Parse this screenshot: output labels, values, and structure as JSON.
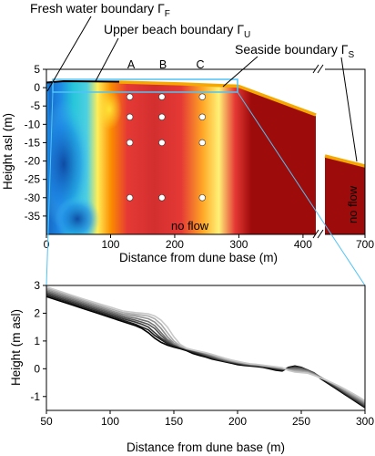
{
  "chart_data": [
    {
      "type": "heatmap",
      "xlabel": "Distance from dune base (m)",
      "ylabel": "Height asl (m)",
      "x_ticks": [
        "0",
        "100",
        "200",
        "300",
        "400",
        "700"
      ],
      "y_ticks": [
        "5",
        "0",
        "-5",
        "-10",
        "-15",
        "-20",
        "-25",
        "-30",
        "-35"
      ],
      "xlim": [
        0,
        700
      ],
      "ylim": [
        -40,
        5
      ],
      "axis_break": [
        420,
        600
      ],
      "annotations": {
        "fresh_water_boundary": "Fresh water boundary Γ",
        "fresh_water_sub": "F",
        "upper_beach_boundary": "Upper beach boundary Γ",
        "upper_beach_sub": "U",
        "seaside_boundary": "Seaside boundary Γ",
        "seaside_sub": "S",
        "no_flow_bottom": "no flow",
        "no_flow_right": "no flow",
        "profile_A": "A",
        "profile_B": "B",
        "profile_C": "C"
      },
      "profile_columns": [
        {
          "label": "A",
          "x": 130
        },
        {
          "label": "B",
          "x": 180
        },
        {
          "label": "C",
          "x": 243
        }
      ],
      "observation_depths": [
        -2.5,
        -8,
        -15,
        -30
      ],
      "boundary_colors": {
        "fresh_water": "#1f77b4",
        "upper_beach": "#000000",
        "seaside": "#f5a800"
      },
      "zoom_box": {
        "x": [
          50,
          300
        ],
        "y": [
          -1.5,
          3
        ]
      }
    },
    {
      "type": "line",
      "xlabel": "Distance from dune base (m)",
      "ylabel": "Height (m asl)",
      "x_ticks": [
        "50",
        "100",
        "150",
        "200",
        "250",
        "300"
      ],
      "y_ticks": [
        "3",
        "2",
        "1",
        "0",
        "-1"
      ],
      "xlim": [
        50,
        300
      ],
      "ylim": [
        -1.5,
        3
      ],
      "profile_x": [
        50,
        60,
        70,
        80,
        90,
        100,
        110,
        120,
        125,
        130,
        135,
        140,
        145,
        150,
        155,
        160,
        165,
        170,
        175,
        180,
        185,
        190,
        195,
        200,
        205,
        210,
        215,
        220,
        225,
        230,
        235,
        240,
        245,
        250,
        255,
        260,
        265,
        270,
        275,
        280,
        285,
        290,
        295,
        300
      ],
      "series": [
        {
          "values": [
            2.6,
            2.45,
            2.3,
            2.15,
            2.0,
            1.85,
            1.7,
            1.55,
            1.45,
            1.3,
            1.1,
            0.95,
            0.85,
            0.78,
            0.72,
            0.65,
            0.55,
            0.48,
            0.42,
            0.35,
            0.3,
            0.25,
            0.2,
            0.15,
            0.12,
            0.1,
            0.08,
            0.05,
            0.0,
            -0.05,
            -0.08,
            0.05,
            0.1,
            0.05,
            -0.05,
            -0.15,
            -0.35,
            -0.5,
            -0.65,
            -0.8,
            -0.95,
            -1.1,
            -1.25,
            -1.4
          ]
        },
        {
          "values": [
            2.65,
            2.5,
            2.35,
            2.2,
            2.05,
            1.9,
            1.75,
            1.6,
            1.5,
            1.4,
            1.2,
            1.05,
            0.9,
            0.82,
            0.75,
            0.68,
            0.6,
            0.52,
            0.45,
            0.38,
            0.32,
            0.27,
            0.22,
            0.18,
            0.14,
            0.12,
            0.1,
            0.07,
            0.03,
            -0.02,
            -0.05,
            0.03,
            0.08,
            0.04,
            -0.05,
            -0.15,
            -0.32,
            -0.48,
            -0.62,
            -0.78,
            -0.93,
            -1.08,
            -1.22,
            -1.38
          ]
        },
        {
          "values": [
            2.7,
            2.55,
            2.4,
            2.25,
            2.1,
            1.95,
            1.8,
            1.68,
            1.6,
            1.5,
            1.3,
            1.1,
            0.95,
            0.85,
            0.78,
            0.7,
            0.62,
            0.55,
            0.48,
            0.4,
            0.34,
            0.28,
            0.24,
            0.2,
            0.16,
            0.13,
            0.11,
            0.08,
            0.05,
            0.0,
            -0.03,
            0.02,
            0.06,
            0.03,
            -0.05,
            -0.15,
            -0.3,
            -0.45,
            -0.6,
            -0.75,
            -0.9,
            -1.05,
            -1.2,
            -1.35
          ]
        },
        {
          "values": [
            2.75,
            2.6,
            2.45,
            2.3,
            2.15,
            2.0,
            1.85,
            1.75,
            1.68,
            1.6,
            1.45,
            1.2,
            1.0,
            0.88,
            0.8,
            0.72,
            0.65,
            0.58,
            0.5,
            0.43,
            0.36,
            0.3,
            0.25,
            0.21,
            0.17,
            0.14,
            0.12,
            0.09,
            0.06,
            0.02,
            -0.02,
            0.0,
            0.03,
            0.01,
            -0.06,
            -0.16,
            -0.3,
            -0.44,
            -0.58,
            -0.72,
            -0.87,
            -1.02,
            -1.16,
            -1.32
          ]
        },
        {
          "values": [
            2.8,
            2.65,
            2.5,
            2.35,
            2.2,
            2.05,
            1.9,
            1.82,
            1.76,
            1.7,
            1.55,
            1.3,
            1.05,
            0.9,
            0.8,
            0.72,
            0.66,
            0.6,
            0.52,
            0.45,
            0.38,
            0.32,
            0.27,
            0.22,
            0.18,
            0.15,
            0.13,
            0.1,
            0.07,
            0.04,
            0.0,
            -0.02,
            0.0,
            -0.02,
            -0.08,
            -0.18,
            -0.3,
            -0.43,
            -0.56,
            -0.7,
            -0.85,
            -0.99,
            -1.13,
            -1.28
          ]
        },
        {
          "values": [
            2.85,
            2.7,
            2.55,
            2.4,
            2.25,
            2.1,
            1.96,
            1.9,
            1.85,
            1.8,
            1.68,
            1.45,
            1.15,
            0.92,
            0.8,
            0.72,
            0.67,
            0.62,
            0.55,
            0.48,
            0.4,
            0.34,
            0.28,
            0.23,
            0.19,
            0.16,
            0.14,
            0.11,
            0.08,
            0.05,
            0.02,
            -0.03,
            -0.04,
            -0.06,
            -0.1,
            -0.2,
            -0.31,
            -0.42,
            -0.54,
            -0.67,
            -0.81,
            -0.95,
            -1.09,
            -1.23
          ]
        },
        {
          "values": [
            2.9,
            2.75,
            2.6,
            2.45,
            2.3,
            2.16,
            2.02,
            1.96,
            1.93,
            1.9,
            1.8,
            1.6,
            1.3,
            1.0,
            0.82,
            0.72,
            0.67,
            0.62,
            0.57,
            0.5,
            0.43,
            0.36,
            0.3,
            0.25,
            0.21,
            0.17,
            0.15,
            0.12,
            0.09,
            0.06,
            0.03,
            -0.05,
            -0.08,
            -0.1,
            -0.13,
            -0.22,
            -0.32,
            -0.42,
            -0.53,
            -0.65,
            -0.78,
            -0.92,
            -1.05,
            -1.19
          ]
        },
        {
          "values": [
            2.95,
            2.8,
            2.65,
            2.5,
            2.36,
            2.22,
            2.08,
            2.02,
            2.0,
            1.98,
            1.9,
            1.75,
            1.5,
            1.15,
            0.88,
            0.74,
            0.68,
            0.63,
            0.58,
            0.52,
            0.45,
            0.38,
            0.32,
            0.27,
            0.22,
            0.18,
            0.16,
            0.13,
            0.1,
            0.07,
            0.04,
            -0.06,
            -0.12,
            -0.14,
            -0.16,
            -0.24,
            -0.33,
            -0.42,
            -0.52,
            -0.63,
            -0.75,
            -0.88,
            -1.01,
            -1.15
          ]
        }
      ]
    }
  ]
}
